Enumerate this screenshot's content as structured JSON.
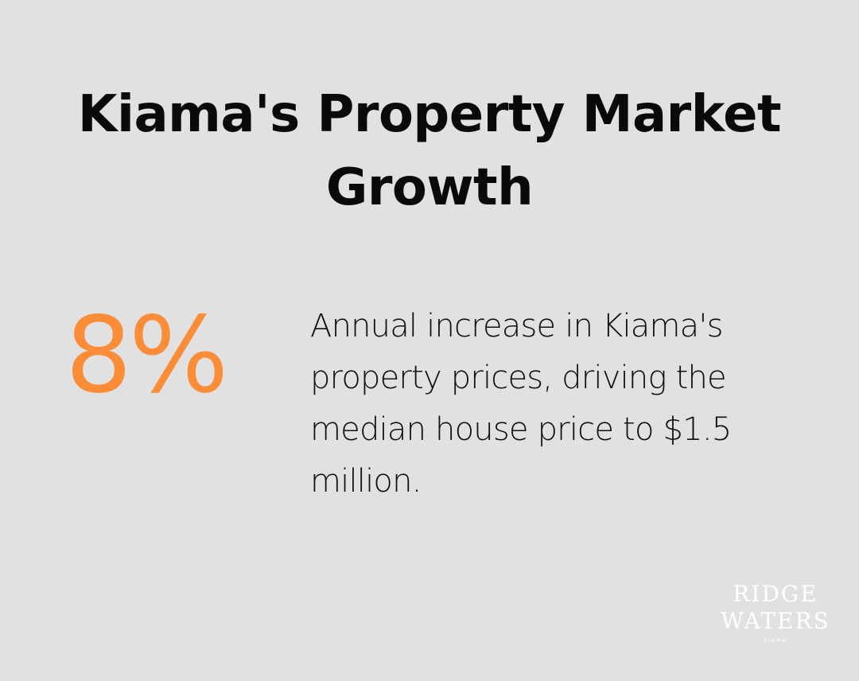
{
  "header": {
    "title": "Kiama's Property Market Growth"
  },
  "stat": {
    "value": "8%",
    "accent_color": "#fb8c38",
    "description": "Annual increase in Kiama's property prices, driving the median house price to $1.5 million."
  },
  "logo": {
    "line1": "RIDGE",
    "line2": "WATERS",
    "line3": "KIAMA"
  },
  "colors": {
    "background": "#e0e1e0",
    "text": "#0a0a0a",
    "logo": "#ffffff"
  }
}
